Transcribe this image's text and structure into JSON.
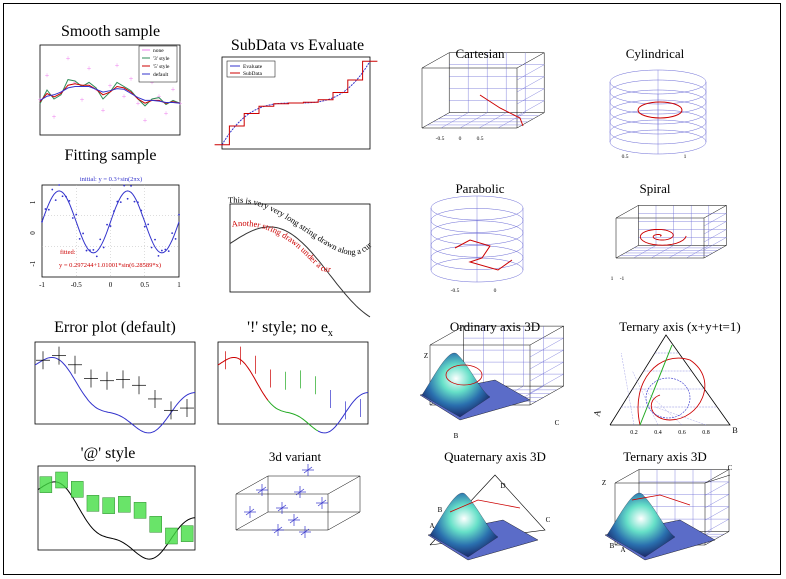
{
  "gallery": {
    "panels": [
      {
        "id": "smooth",
        "title": "Smooth sample"
      },
      {
        "id": "subdata",
        "title": "SubData vs Evaluate"
      },
      {
        "id": "fitting",
        "title": "Fitting sample"
      },
      {
        "id": "textcurve",
        "title": ""
      },
      {
        "id": "cartesian",
        "title": "Cartesian"
      },
      {
        "id": "cylindrical",
        "title": "Cylindrical"
      },
      {
        "id": "parabolic",
        "title": "Parabolic"
      },
      {
        "id": "spiral",
        "title": "Spiral"
      },
      {
        "id": "error_default",
        "title": "Error plot (default)"
      },
      {
        "id": "bang_style",
        "title": "'!' style; no e"
      },
      {
        "id": "at_style",
        "title": "'@' style"
      },
      {
        "id": "variant3d",
        "title": "3d variant"
      },
      {
        "id": "ordinary3d",
        "title": "Ordinary axis 3D"
      },
      {
        "id": "ternary",
        "title": "Ternary axis (x+y+t=1)"
      },
      {
        "id": "quaternary",
        "title": "Quaternary axis 3D"
      },
      {
        "id": "ternary3d",
        "title": "Ternary axis 3D"
      }
    ],
    "bang_subscript": "x"
  },
  "chart_data": [
    {
      "id": "smooth",
      "type": "line",
      "title": "Smooth sample",
      "legend": [
        "none",
        "'3' style",
        "'5' style",
        "default"
      ],
      "legend_position": "top-right",
      "colors": [
        "#ee82ee",
        "#2e8b57",
        "#cc0000",
        "#3333cc"
      ],
      "x": [
        0,
        1,
        2,
        3,
        4,
        5,
        6,
        7,
        8,
        9,
        10,
        11,
        12,
        13,
        14,
        15,
        16,
        17,
        18,
        19,
        20
      ],
      "series": [
        {
          "values": [
            0.1,
            0.45,
            -0.15,
            0.2,
            0.7,
            0.35,
            0.1,
            0.55,
            0.25,
            -0.05,
            0.3,
            0.6,
            0.15,
            0.4,
            0.05,
            -0.2,
            0.35,
            0.15,
            -0.1,
            0.25,
            0.05
          ]
        },
        {
          "values": [
            0.05,
            0.25,
            0.12,
            0.18,
            0.4,
            0.38,
            0.3,
            0.36,
            0.28,
            0.12,
            0.22,
            0.36,
            0.3,
            0.24,
            0.12,
            0.02,
            0.12,
            0.14,
            0.04,
            0.1,
            0.06
          ]
        },
        {
          "values": [
            0.08,
            0.2,
            0.15,
            0.2,
            0.32,
            0.34,
            0.32,
            0.32,
            0.26,
            0.18,
            0.22,
            0.3,
            0.28,
            0.22,
            0.12,
            0.06,
            0.1,
            0.1,
            0.06,
            0.08,
            0.06
          ]
        },
        {
          "values": [
            0.1,
            0.16,
            0.18,
            0.22,
            0.28,
            0.3,
            0.3,
            0.3,
            0.26,
            0.22,
            0.24,
            0.27,
            0.26,
            0.2,
            0.14,
            0.1,
            0.1,
            0.09,
            0.07,
            0.07,
            0.06
          ]
        }
      ]
    },
    {
      "id": "subdata",
      "type": "line",
      "title": "SubData vs Evaluate",
      "legend": [
        "Evaluate",
        "SubData"
      ],
      "legend_position": "top-left",
      "colors": [
        "#3333cc",
        "#cc0000"
      ],
      "x": [
        -1,
        -0.8,
        -0.6,
        -0.4,
        -0.2,
        0,
        0.2,
        0.4,
        0.6,
        0.8,
        1
      ],
      "series": [
        {
          "values": [
            -1,
            -0.55,
            -0.25,
            -0.08,
            -0.02,
            0,
            0.02,
            0.08,
            0.25,
            0.55,
            1
          ]
        },
        {
          "values": [
            -1,
            -0.55,
            -0.25,
            -0.08,
            -0.02,
            0,
            0.02,
            0.08,
            0.25,
            0.55,
            1
          ]
        }
      ]
    },
    {
      "id": "fitting",
      "type": "scatter",
      "title": "Fitting sample",
      "annotations": [
        "initial: y = 0.3+sin(2πx)",
        "fitted:",
        "y = 0.297244+1.01001*sin(6.28589*x)"
      ],
      "xlim": [
        -1,
        1
      ],
      "ylim": [
        -1.5,
        1.5
      ],
      "x_ticks": [
        "-1",
        "-0.5",
        "0",
        "0.5",
        "1"
      ],
      "y_ticks": [
        "-1",
        "0",
        "1"
      ],
      "colors": [
        "#3333cc",
        "#cc0000"
      ]
    },
    {
      "id": "textcurve",
      "type": "line",
      "annotations": [
        "This is very very long string drawn along a curve",
        "Another string drawn under a curve"
      ]
    },
    {
      "id": "cartesian",
      "type": "line",
      "x_ticks": [
        "-0.5",
        "0",
        "0.5"
      ]
    },
    {
      "id": "cylindrical",
      "type": "line",
      "x_ticks": [
        "0.5",
        "1"
      ]
    },
    {
      "id": "parabolic",
      "type": "line",
      "x_ticks": [
        "-0.5",
        "0"
      ]
    },
    {
      "id": "spiral",
      "type": "line",
      "x_ticks": [
        "1",
        "-1"
      ]
    },
    {
      "id": "error_default",
      "type": "line",
      "title": "Error plot (default)",
      "x": [
        0,
        1,
        2,
        3,
        4,
        5,
        6,
        7,
        8,
        9
      ],
      "values": [
        0.6,
        0.7,
        0.5,
        0.2,
        0.15,
        0.18,
        0.05,
        -0.25,
        -0.5,
        -0.45
      ],
      "colors": [
        "#3333cc",
        "#000000"
      ]
    },
    {
      "id": "bang_style",
      "type": "line",
      "title": "'!' style; no e_x",
      "x": [
        0,
        1,
        2,
        3,
        4,
        5,
        6,
        7,
        8,
        9
      ],
      "values": [
        0.6,
        0.7,
        0.5,
        0.2,
        0.15,
        0.18,
        0.05,
        -0.25,
        -0.5,
        -0.45
      ],
      "colors": [
        "#cc0000",
        "#22aa22",
        "#3333cc"
      ]
    },
    {
      "id": "at_style",
      "type": "line",
      "title": "'@' style",
      "x": [
        0,
        1,
        2,
        3,
        4,
        5,
        6,
        7,
        8,
        9
      ],
      "values": [
        0.6,
        0.7,
        0.5,
        0.2,
        0.15,
        0.18,
        0.05,
        -0.25,
        -0.5,
        -0.45
      ],
      "colors": [
        "#44dd44",
        "#000000"
      ]
    },
    {
      "id": "variant3d",
      "type": "scatter",
      "title": "3d variant",
      "colors": [
        "#3333cc"
      ]
    },
    {
      "id": "ordinary3d",
      "type": "heatmap",
      "title": "Ordinary axis 3D",
      "axis_labels": [
        "Z",
        "B",
        "C"
      ]
    },
    {
      "id": "ternary",
      "type": "line",
      "title": "Ternary axis (x+y+t=1)",
      "axis_labels": [
        "A",
        "B"
      ],
      "ticks": [
        "0.2",
        "0.4",
        "0.6",
        "0.8"
      ]
    },
    {
      "id": "quaternary",
      "type": "heatmap",
      "title": "Quaternary axis 3D",
      "axis_labels": [
        "D",
        "C",
        "B",
        "A"
      ]
    },
    {
      "id": "ternary3d",
      "type": "heatmap",
      "title": "Ternary axis 3D",
      "axis_labels": [
        "Z",
        "C",
        "B",
        "A"
      ]
    }
  ]
}
